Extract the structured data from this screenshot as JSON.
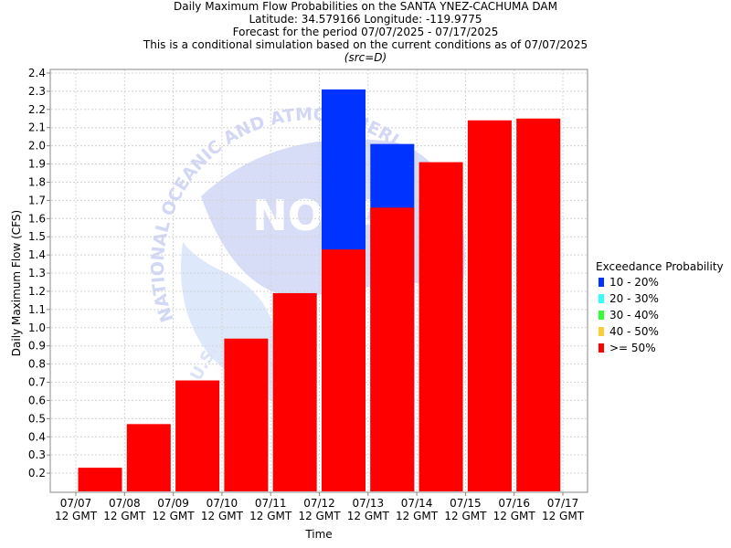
{
  "titles": {
    "line1": "Daily Maximum Flow Probabilities on the SANTA YNEZ-CACHUMA DAM",
    "line2": "Latitude: 34.579166 Longitude: -119.9775",
    "line3": "Forecast for the period 07/07/2025 - 07/17/2025",
    "line4": "This is a conditional simulation based on the current conditions as of 07/07/2025",
    "line5": "(src=D)"
  },
  "watermark": {
    "arc_text": "NATIONAL OCEANIC AND ATMOSPHERIC",
    "logo_text": "NOAA",
    "bottom_text": "U.S."
  },
  "legend": {
    "title": "Exceedance Probability",
    "items": [
      {
        "label": "10 - 20%",
        "color": "#0033ff"
      },
      {
        "label": "20 - 30%",
        "color": "#33ffff"
      },
      {
        "label": "30 - 40%",
        "color": "#33ff33"
      },
      {
        "label": "40 - 50%",
        "color": "#ffcc33"
      },
      {
        "label": ">= 50%",
        "color": "#ff0000"
      }
    ]
  },
  "chart_data": {
    "type": "bar",
    "xlabel": "Time",
    "ylabel": "Daily Maximum Flow (CFS)",
    "ylim": [
      0.1,
      2.42
    ],
    "y_ticks": [
      0.2,
      0.3,
      0.4,
      0.5,
      0.6,
      0.7,
      0.8,
      0.9,
      1.0,
      1.1,
      1.2,
      1.3,
      1.4,
      1.5,
      1.6,
      1.7,
      1.8,
      1.9,
      2.0,
      2.1,
      2.2,
      2.3,
      2.4
    ],
    "x_ticks": [
      [
        "07/07",
        "12 GMT"
      ],
      [
        "07/08",
        "12 GMT"
      ],
      [
        "07/09",
        "12 GMT"
      ],
      [
        "07/10",
        "12 GMT"
      ],
      [
        "07/11",
        "12 GMT"
      ],
      [
        "07/12",
        "12 GMT"
      ],
      [
        "07/13",
        "12 GMT"
      ],
      [
        "07/14",
        "12 GMT"
      ],
      [
        "07/15",
        "12 GMT"
      ],
      [
        "07/16",
        "12 GMT"
      ],
      [
        "07/17",
        "12 GMT"
      ]
    ],
    "grid": true,
    "legend_position": "right",
    "colors": {
      ">= 50%": "#ff0000",
      "10 - 20%": "#0033ff"
    },
    "bars_ge_50": [
      0.23,
      0.47,
      0.71,
      0.94,
      1.19,
      1.43,
      1.66,
      1.91,
      2.14,
      2.15
    ],
    "bars_10_20": [
      null,
      null,
      null,
      null,
      null,
      2.31,
      2.01,
      null,
      null,
      null
    ]
  }
}
